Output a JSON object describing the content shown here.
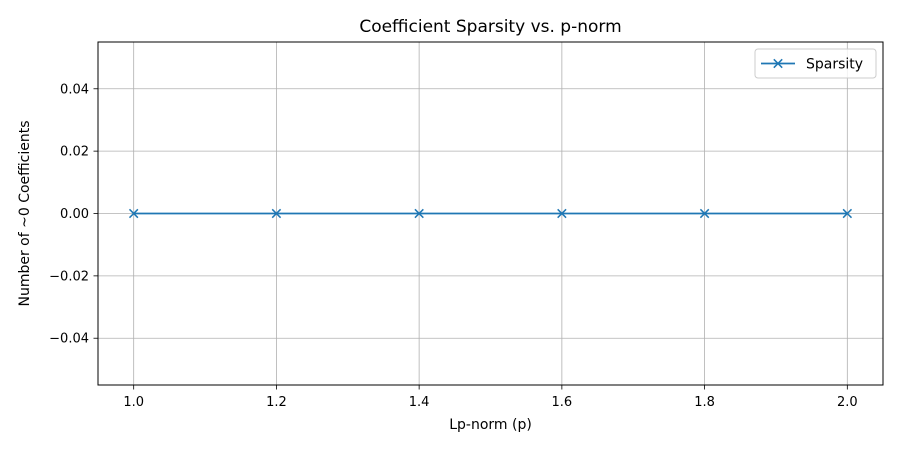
{
  "chart_data": {
    "type": "line",
    "title": "Coefficient Sparsity vs. p-norm",
    "xlabel": "Lp-norm (p)",
    "ylabel": "Number of ~0 Coefficients",
    "x": [
      1.0,
      1.2,
      1.4,
      1.6,
      1.8,
      2.0
    ],
    "xlim": [
      0.95,
      2.05
    ],
    "ylim": [
      -0.055,
      0.055
    ],
    "xticks": [
      1.0,
      1.2,
      1.4,
      1.6,
      1.8,
      2.0
    ],
    "xtick_labels": [
      "1.0",
      "1.2",
      "1.4",
      "1.6",
      "1.8",
      "2.0"
    ],
    "yticks": [
      -0.04,
      -0.02,
      0.0,
      0.02,
      0.04
    ],
    "ytick_labels": [
      "−0.04",
      "−0.02",
      "0.00",
      "0.02",
      "0.04"
    ],
    "grid": true,
    "legend_position": "top-right",
    "series": [
      {
        "name": "Sparsity",
        "marker": "x",
        "color": "#1f77b4",
        "values": [
          0,
          0,
          0,
          0,
          0,
          0
        ]
      }
    ]
  }
}
